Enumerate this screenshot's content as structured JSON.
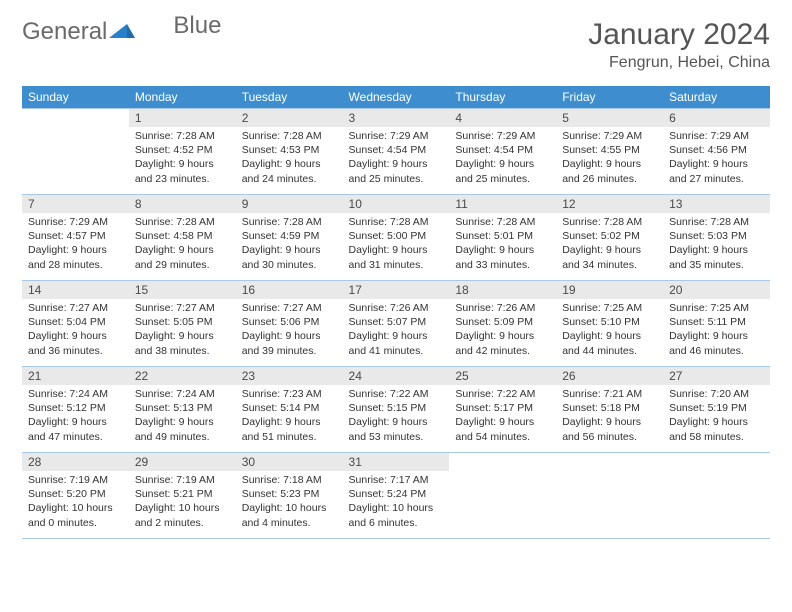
{
  "brand": {
    "word1": "General",
    "word2": "Blue"
  },
  "title": "January 2024",
  "location": "Fengrun, Hebei, China",
  "colors": {
    "header_bg": "#3e8ecf",
    "header_text": "#ffffff",
    "daynum_bg": "#e9e9e9",
    "border": "#a9c8e6",
    "brand_gray": "#6a6a6a",
    "brand_blue": "#2a7fc9"
  },
  "weekdays": [
    "Sunday",
    "Monday",
    "Tuesday",
    "Wednesday",
    "Thursday",
    "Friday",
    "Saturday"
  ],
  "weeks": [
    [
      {
        "n": "",
        "sr": "",
        "ss": "",
        "dl": ""
      },
      {
        "n": "1",
        "sr": "Sunrise: 7:28 AM",
        "ss": "Sunset: 4:52 PM",
        "dl": "Daylight: 9 hours and 23 minutes."
      },
      {
        "n": "2",
        "sr": "Sunrise: 7:28 AM",
        "ss": "Sunset: 4:53 PM",
        "dl": "Daylight: 9 hours and 24 minutes."
      },
      {
        "n": "3",
        "sr": "Sunrise: 7:29 AM",
        "ss": "Sunset: 4:54 PM",
        "dl": "Daylight: 9 hours and 25 minutes."
      },
      {
        "n": "4",
        "sr": "Sunrise: 7:29 AM",
        "ss": "Sunset: 4:54 PM",
        "dl": "Daylight: 9 hours and 25 minutes."
      },
      {
        "n": "5",
        "sr": "Sunrise: 7:29 AM",
        "ss": "Sunset: 4:55 PM",
        "dl": "Daylight: 9 hours and 26 minutes."
      },
      {
        "n": "6",
        "sr": "Sunrise: 7:29 AM",
        "ss": "Sunset: 4:56 PM",
        "dl": "Daylight: 9 hours and 27 minutes."
      }
    ],
    [
      {
        "n": "7",
        "sr": "Sunrise: 7:29 AM",
        "ss": "Sunset: 4:57 PM",
        "dl": "Daylight: 9 hours and 28 minutes."
      },
      {
        "n": "8",
        "sr": "Sunrise: 7:28 AM",
        "ss": "Sunset: 4:58 PM",
        "dl": "Daylight: 9 hours and 29 minutes."
      },
      {
        "n": "9",
        "sr": "Sunrise: 7:28 AM",
        "ss": "Sunset: 4:59 PM",
        "dl": "Daylight: 9 hours and 30 minutes."
      },
      {
        "n": "10",
        "sr": "Sunrise: 7:28 AM",
        "ss": "Sunset: 5:00 PM",
        "dl": "Daylight: 9 hours and 31 minutes."
      },
      {
        "n": "11",
        "sr": "Sunrise: 7:28 AM",
        "ss": "Sunset: 5:01 PM",
        "dl": "Daylight: 9 hours and 33 minutes."
      },
      {
        "n": "12",
        "sr": "Sunrise: 7:28 AM",
        "ss": "Sunset: 5:02 PM",
        "dl": "Daylight: 9 hours and 34 minutes."
      },
      {
        "n": "13",
        "sr": "Sunrise: 7:28 AM",
        "ss": "Sunset: 5:03 PM",
        "dl": "Daylight: 9 hours and 35 minutes."
      }
    ],
    [
      {
        "n": "14",
        "sr": "Sunrise: 7:27 AM",
        "ss": "Sunset: 5:04 PM",
        "dl": "Daylight: 9 hours and 36 minutes."
      },
      {
        "n": "15",
        "sr": "Sunrise: 7:27 AM",
        "ss": "Sunset: 5:05 PM",
        "dl": "Daylight: 9 hours and 38 minutes."
      },
      {
        "n": "16",
        "sr": "Sunrise: 7:27 AM",
        "ss": "Sunset: 5:06 PM",
        "dl": "Daylight: 9 hours and 39 minutes."
      },
      {
        "n": "17",
        "sr": "Sunrise: 7:26 AM",
        "ss": "Sunset: 5:07 PM",
        "dl": "Daylight: 9 hours and 41 minutes."
      },
      {
        "n": "18",
        "sr": "Sunrise: 7:26 AM",
        "ss": "Sunset: 5:09 PM",
        "dl": "Daylight: 9 hours and 42 minutes."
      },
      {
        "n": "19",
        "sr": "Sunrise: 7:25 AM",
        "ss": "Sunset: 5:10 PM",
        "dl": "Daylight: 9 hours and 44 minutes."
      },
      {
        "n": "20",
        "sr": "Sunrise: 7:25 AM",
        "ss": "Sunset: 5:11 PM",
        "dl": "Daylight: 9 hours and 46 minutes."
      }
    ],
    [
      {
        "n": "21",
        "sr": "Sunrise: 7:24 AM",
        "ss": "Sunset: 5:12 PM",
        "dl": "Daylight: 9 hours and 47 minutes."
      },
      {
        "n": "22",
        "sr": "Sunrise: 7:24 AM",
        "ss": "Sunset: 5:13 PM",
        "dl": "Daylight: 9 hours and 49 minutes."
      },
      {
        "n": "23",
        "sr": "Sunrise: 7:23 AM",
        "ss": "Sunset: 5:14 PM",
        "dl": "Daylight: 9 hours and 51 minutes."
      },
      {
        "n": "24",
        "sr": "Sunrise: 7:22 AM",
        "ss": "Sunset: 5:15 PM",
        "dl": "Daylight: 9 hours and 53 minutes."
      },
      {
        "n": "25",
        "sr": "Sunrise: 7:22 AM",
        "ss": "Sunset: 5:17 PM",
        "dl": "Daylight: 9 hours and 54 minutes."
      },
      {
        "n": "26",
        "sr": "Sunrise: 7:21 AM",
        "ss": "Sunset: 5:18 PM",
        "dl": "Daylight: 9 hours and 56 minutes."
      },
      {
        "n": "27",
        "sr": "Sunrise: 7:20 AM",
        "ss": "Sunset: 5:19 PM",
        "dl": "Daylight: 9 hours and 58 minutes."
      }
    ],
    [
      {
        "n": "28",
        "sr": "Sunrise: 7:19 AM",
        "ss": "Sunset: 5:20 PM",
        "dl": "Daylight: 10 hours and 0 minutes."
      },
      {
        "n": "29",
        "sr": "Sunrise: 7:19 AM",
        "ss": "Sunset: 5:21 PM",
        "dl": "Daylight: 10 hours and 2 minutes."
      },
      {
        "n": "30",
        "sr": "Sunrise: 7:18 AM",
        "ss": "Sunset: 5:23 PM",
        "dl": "Daylight: 10 hours and 4 minutes."
      },
      {
        "n": "31",
        "sr": "Sunrise: 7:17 AM",
        "ss": "Sunset: 5:24 PM",
        "dl": "Daylight: 10 hours and 6 minutes."
      },
      {
        "n": "",
        "sr": "",
        "ss": "",
        "dl": ""
      },
      {
        "n": "",
        "sr": "",
        "ss": "",
        "dl": ""
      },
      {
        "n": "",
        "sr": "",
        "ss": "",
        "dl": ""
      }
    ]
  ]
}
